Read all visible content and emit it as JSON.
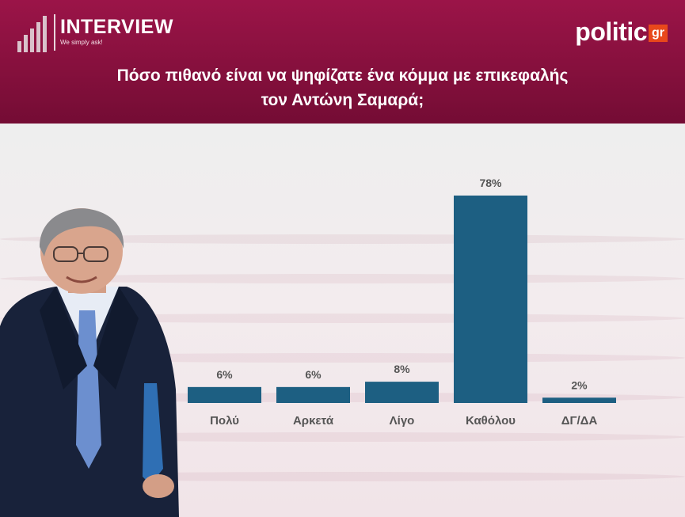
{
  "header": {
    "brand_name": "INTERVIEW",
    "brand_tagline": "We simply ask!",
    "partner_logo_word": "politic",
    "partner_logo_suffix": "gr"
  },
  "title_line1": "Πόσο πιθανό είναι να ψηφίζατε ένα κόμμα με επικεφαλής",
  "title_line2": "τον Αντώνη Σαμαρά;",
  "colors": {
    "header": "#86103d",
    "bar": "#1d5f82",
    "logo_accent": "#e8481b"
  },
  "chart_data": {
    "type": "bar",
    "categories": [
      "Πολύ",
      "Αρκετά",
      "Λίγο",
      "Καθόλου",
      "ΔΓ/ΔΑ"
    ],
    "values": [
      6,
      6,
      8,
      78,
      2
    ],
    "data_labels": [
      "6%",
      "6%",
      "8%",
      "78%",
      "2%"
    ],
    "ylim": [
      0,
      78
    ],
    "grid": false,
    "legend": "none"
  }
}
